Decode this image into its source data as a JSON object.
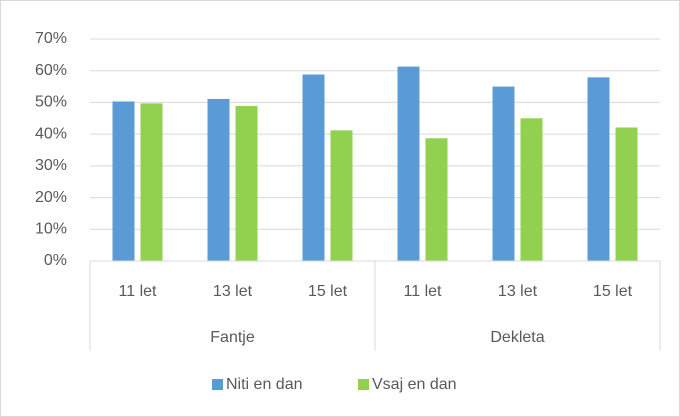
{
  "chart_data": {
    "type": "bar",
    "categories": [
      "11 let",
      "13 let",
      "15 let",
      "11 let",
      "13 let",
      "15 let"
    ],
    "groups": [
      "Fantje",
      "Dekleta"
    ],
    "series": [
      {
        "name": "Niti en dan",
        "color": "#5b9bd5",
        "values": [
          50.3,
          51.1,
          58.8,
          61.3,
          55.0,
          57.9
        ]
      },
      {
        "name": "Vsaj en dan",
        "color": "#92d050",
        "values": [
          49.7,
          48.9,
          41.2,
          38.7,
          45.0,
          42.1
        ]
      }
    ],
    "ylim": [
      0,
      70
    ],
    "yticks": [
      {
        "value": 0,
        "label": "0%"
      },
      {
        "value": 10,
        "label": "10%"
      },
      {
        "value": 20,
        "label": "20%"
      },
      {
        "value": 30,
        "label": "30%"
      },
      {
        "value": 40,
        "label": "40%"
      },
      {
        "value": 50,
        "label": "50%"
      },
      {
        "value": 60,
        "label": "60%"
      },
      {
        "value": 70,
        "label": "70%"
      }
    ],
    "grid": true,
    "legend": "bottom"
  }
}
